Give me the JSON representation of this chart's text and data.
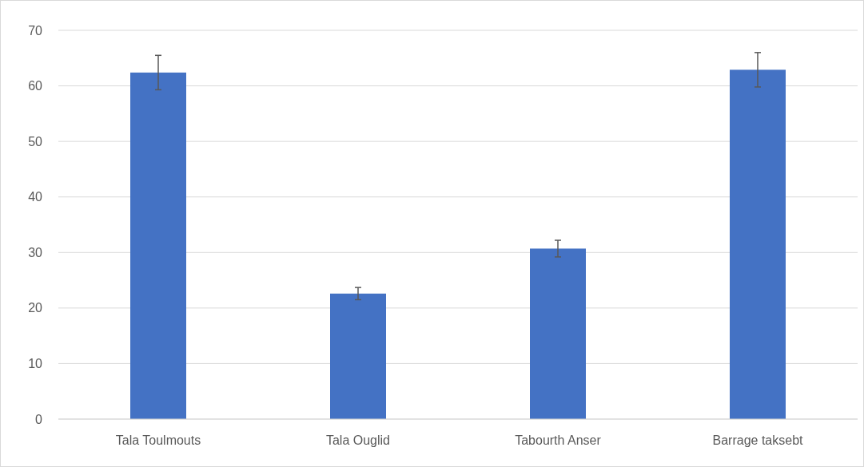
{
  "chart_data": {
    "type": "bar",
    "categories": [
      "Tala Toulmouts",
      "Tala Ouglid",
      "Tabourth Anser",
      "Barrage taksebt"
    ],
    "values": [
      62.4,
      22.6,
      30.7,
      62.9
    ],
    "errors": [
      3.1,
      1.1,
      1.5,
      3.1
    ],
    "color": "#4472c4",
    "ylim": [
      0,
      70
    ],
    "yticks": [
      0,
      10,
      20,
      30,
      40,
      50,
      60,
      70
    ],
    "grid": "y"
  }
}
